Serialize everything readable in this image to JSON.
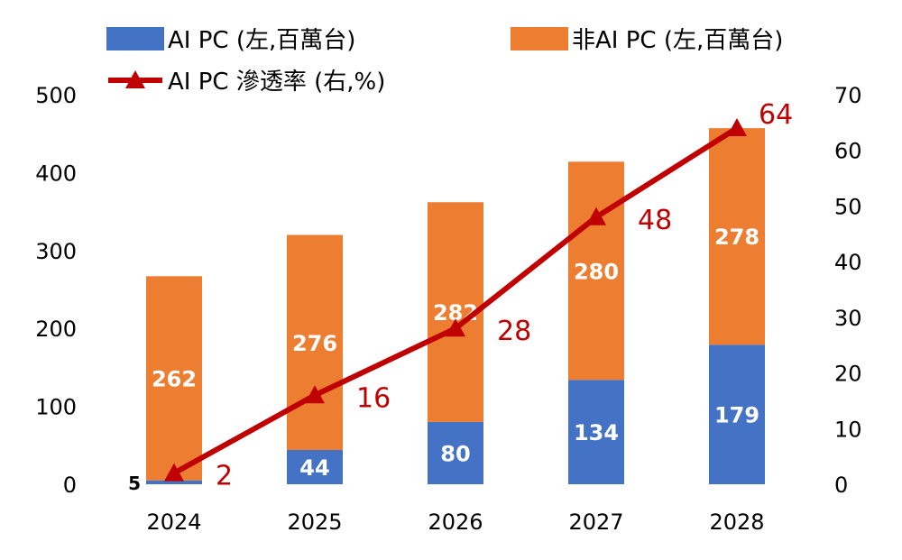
{
  "legend": {
    "ai_pc": "AI PC (左,百萬台)",
    "non_ai_pc": "非AI PC (左,百萬台)",
    "penetration": "AI PC 滲透率 (右,%)"
  },
  "colors": {
    "ai_pc": "#4472c4",
    "non_ai_pc": "#ed7d31",
    "penetration": "#c00000"
  },
  "chart_data": {
    "type": "bar",
    "stacked": true,
    "categories": [
      "2024",
      "2025",
      "2026",
      "2027",
      "2028"
    ],
    "series": [
      {
        "name": "AI PC (左,百萬台)",
        "axis": "left",
        "type": "bar",
        "values": [
          5,
          44,
          80,
          134,
          179
        ]
      },
      {
        "name": "非AI PC (左,百萬台)",
        "axis": "left",
        "type": "bar",
        "values": [
          262,
          276,
          282,
          280,
          278
        ]
      },
      {
        "name": "AI PC 滲透率 (右,%)",
        "axis": "right",
        "type": "line",
        "marker": "triangle",
        "values": [
          2,
          16,
          28,
          48,
          64
        ]
      }
    ],
    "ylim_left": [
      0,
      500
    ],
    "yticks_left": [
      "0",
      "100",
      "200",
      "300",
      "400",
      "500"
    ],
    "ylim_right": [
      0,
      70
    ],
    "yticks_right": [
      "0",
      "10",
      "20",
      "30",
      "40",
      "50",
      "60",
      "70"
    ],
    "grid": false,
    "legend_position": "top"
  }
}
